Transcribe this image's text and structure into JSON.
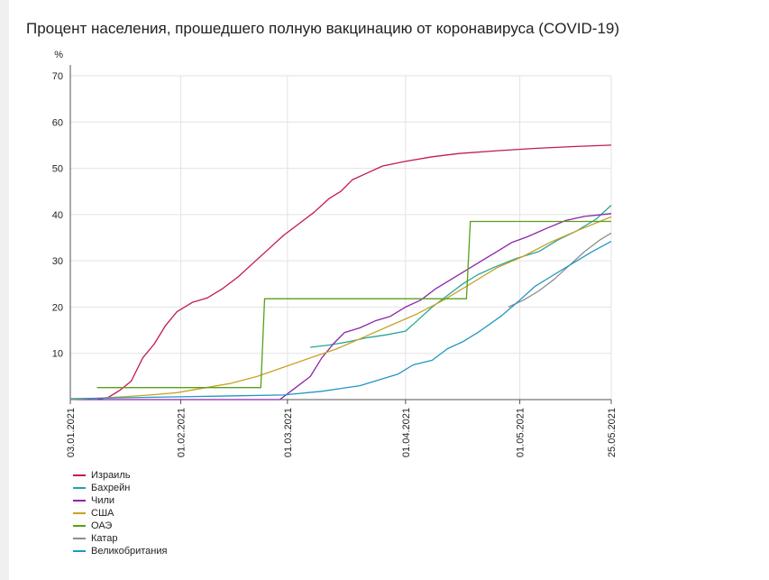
{
  "chart_data": {
    "type": "line",
    "title": "Процент населения, прошедшего полную вакцинацию от коронавируса (COVID-19)",
    "ylabel": "%",
    "xlabel": "",
    "ylim": [
      0,
      70
    ],
    "yticks": [
      10,
      20,
      30,
      40,
      50,
      60,
      70
    ],
    "xlim": [
      "2021-01-03",
      "2021-05-25"
    ],
    "xticks": [
      "03.01.2021",
      "01.02.2021",
      "01.03.2021",
      "01.04.2021",
      "01.05.2021",
      "25.05.2021"
    ],
    "grid": true,
    "legend_position": "bottom-left",
    "series": [
      {
        "name": "Израиль",
        "color": "#c2185b",
        "points": [
          [
            "2021-01-10",
            0
          ],
          [
            "2021-01-13",
            0.5
          ],
          [
            "2021-01-16",
            2
          ],
          [
            "2021-01-19",
            4
          ],
          [
            "2021-01-22",
            9
          ],
          [
            "2021-01-25",
            12
          ],
          [
            "2021-01-28",
            16
          ],
          [
            "2021-01-31",
            19
          ],
          [
            "2021-02-04",
            21
          ],
          [
            "2021-02-08",
            22
          ],
          [
            "2021-02-12",
            24
          ],
          [
            "2021-02-16",
            26.5
          ],
          [
            "2021-02-20",
            29.5
          ],
          [
            "2021-02-24",
            32.5
          ],
          [
            "2021-02-28",
            35.5
          ],
          [
            "2021-03-04",
            38
          ],
          [
            "2021-03-08",
            40.5
          ],
          [
            "2021-03-12",
            43.5
          ],
          [
            "2021-03-15",
            45
          ],
          [
            "2021-03-18",
            47.5
          ],
          [
            "2021-03-22",
            49
          ],
          [
            "2021-03-26",
            50.5
          ],
          [
            "2021-04-01",
            51.5
          ],
          [
            "2021-04-08",
            52.5
          ],
          [
            "2021-04-15",
            53.2
          ],
          [
            "2021-04-25",
            53.8
          ],
          [
            "2021-05-05",
            54.3
          ],
          [
            "2021-05-15",
            54.7
          ],
          [
            "2021-05-25",
            55
          ]
        ]
      },
      {
        "name": "Бахрейн",
        "color": "#26a69a",
        "points": [
          [
            "2021-03-07",
            11.3
          ],
          [
            "2021-03-12",
            11.8
          ],
          [
            "2021-03-17",
            12.5
          ],
          [
            "2021-03-22",
            13.4
          ],
          [
            "2021-03-27",
            14
          ],
          [
            "2021-04-01",
            14.8
          ],
          [
            "2021-04-04",
            17
          ],
          [
            "2021-04-08",
            20
          ],
          [
            "2021-04-12",
            22.5
          ],
          [
            "2021-04-16",
            25
          ],
          [
            "2021-04-20",
            27
          ],
          [
            "2021-04-24",
            28.5
          ],
          [
            "2021-04-30",
            30.5
          ],
          [
            "2021-05-06",
            32
          ],
          [
            "2021-05-11",
            34.5
          ],
          [
            "2021-05-16",
            36.5
          ],
          [
            "2021-05-21",
            39
          ],
          [
            "2021-05-25",
            42
          ]
        ]
      },
      {
        "name": "Чили",
        "color": "#8e24aa",
        "points": [
          [
            "2021-01-03",
            0
          ],
          [
            "2021-02-27",
            0
          ],
          [
            "2021-03-03",
            2.5
          ],
          [
            "2021-03-07",
            5
          ],
          [
            "2021-03-10",
            9
          ],
          [
            "2021-03-13",
            12
          ],
          [
            "2021-03-16",
            14.5
          ],
          [
            "2021-03-20",
            15.5
          ],
          [
            "2021-03-24",
            17
          ],
          [
            "2021-03-28",
            18
          ],
          [
            "2021-04-01",
            20
          ],
          [
            "2021-04-05",
            21.5
          ],
          [
            "2021-04-09",
            24
          ],
          [
            "2021-04-13",
            26
          ],
          [
            "2021-04-17",
            28
          ],
          [
            "2021-04-21",
            30
          ],
          [
            "2021-04-25",
            32
          ],
          [
            "2021-04-29",
            34
          ],
          [
            "2021-05-03",
            35.2
          ],
          [
            "2021-05-08",
            37
          ],
          [
            "2021-05-13",
            38.7
          ],
          [
            "2021-05-18",
            39.6
          ],
          [
            "2021-05-25",
            40.2
          ]
        ]
      },
      {
        "name": "США",
        "color": "#c9a227",
        "points": [
          [
            "2021-01-03",
            0
          ],
          [
            "2021-01-10",
            0.3
          ],
          [
            "2021-01-17",
            0.6
          ],
          [
            "2021-01-24",
            1
          ],
          [
            "2021-01-31",
            1.5
          ],
          [
            "2021-02-07",
            2.5
          ],
          [
            "2021-02-14",
            3.5
          ],
          [
            "2021-02-21",
            5
          ],
          [
            "2021-02-28",
            7
          ],
          [
            "2021-03-07",
            9
          ],
          [
            "2021-03-14",
            11
          ],
          [
            "2021-03-21",
            13.5
          ],
          [
            "2021-03-28",
            16
          ],
          [
            "2021-04-04",
            18.5
          ],
          [
            "2021-04-11",
            21.5
          ],
          [
            "2021-04-18",
            25
          ],
          [
            "2021-04-25",
            28.5
          ],
          [
            "2021-05-02",
            31
          ],
          [
            "2021-05-09",
            34
          ],
          [
            "2021-05-16",
            36.5
          ],
          [
            "2021-05-25",
            39.5
          ]
        ]
      },
      {
        "name": "ОАЭ",
        "color": "#5a9e1c",
        "points": [
          [
            "2021-01-10",
            2.6
          ],
          [
            "2021-02-22",
            2.6
          ],
          [
            "2021-02-23",
            21.8
          ],
          [
            "2021-04-17",
            21.8
          ],
          [
            "2021-04-18",
            38.5
          ],
          [
            "2021-05-25",
            38.5
          ]
        ]
      },
      {
        "name": "Катар",
        "color": "#8c8c8c",
        "points": [
          [
            "2021-04-28",
            20
          ],
          [
            "2021-05-02",
            21.5
          ],
          [
            "2021-05-06",
            23.5
          ],
          [
            "2021-05-10",
            26
          ],
          [
            "2021-05-14",
            29
          ],
          [
            "2021-05-18",
            32
          ],
          [
            "2021-05-22",
            34.5
          ],
          [
            "2021-05-25",
            36
          ]
        ]
      },
      {
        "name": "Великобритания",
        "color": "#2196c4",
        "points": [
          [
            "2021-01-03",
            0.2
          ],
          [
            "2021-02-01",
            0.6
          ],
          [
            "2021-02-28",
            1
          ],
          [
            "2021-03-10",
            1.8
          ],
          [
            "2021-03-20",
            3
          ],
          [
            "2021-03-30",
            5.5
          ],
          [
            "2021-04-03",
            7.5
          ],
          [
            "2021-04-08",
            8.5
          ],
          [
            "2021-04-12",
            11
          ],
          [
            "2021-04-16",
            12.5
          ],
          [
            "2021-04-20",
            14.5
          ],
          [
            "2021-04-26",
            18
          ],
          [
            "2021-05-01",
            21.5
          ],
          [
            "2021-05-05",
            24.5
          ],
          [
            "2021-05-10",
            27
          ],
          [
            "2021-05-15",
            29.5
          ],
          [
            "2021-05-20",
            32
          ],
          [
            "2021-05-25",
            34.2
          ]
        ]
      }
    ]
  }
}
